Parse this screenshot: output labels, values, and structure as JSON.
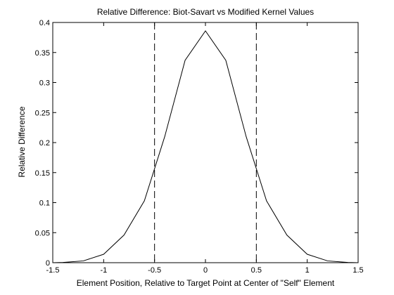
{
  "chart_data": {
    "type": "line",
    "title": "Relative Difference: Biot-Savart vs Modified Kernel Values",
    "xlabel": "Element Position, Relative to Target Point at Center of \"Self\" Element",
    "ylabel": "Relative Difference",
    "xlim": [
      -1.5,
      1.5
    ],
    "ylim": [
      0,
      0.4
    ],
    "xticks": [
      -1.5,
      -1,
      -0.5,
      0,
      0.5,
      1,
      1.5
    ],
    "xtick_labels": [
      "-1.5",
      "-1",
      "-0.5",
      "0",
      "0.5",
      "1",
      "1.5"
    ],
    "yticks": [
      0,
      0.05,
      0.1,
      0.15,
      0.2,
      0.25,
      0.3,
      0.35,
      0.4
    ],
    "ytick_labels": [
      "0",
      "0.05",
      "0.1",
      "0.15",
      "0.2",
      "0.25",
      "0.3",
      "0.35",
      "0.4"
    ],
    "grid": false,
    "series": [
      {
        "x": [
          -1.5,
          -1.4,
          -1.2,
          -1.0,
          -0.8,
          -0.6,
          -0.4,
          -0.2,
          0.0,
          0.2,
          0.4,
          0.6,
          0.8,
          1.0,
          1.2,
          1.4,
          1.5
        ],
        "y": [
          0.0,
          0.0005,
          0.003,
          0.014,
          0.046,
          0.103,
          0.21,
          0.337,
          0.386,
          0.337,
          0.21,
          0.103,
          0.046,
          0.014,
          0.003,
          0.0005,
          0.0
        ],
        "style": "solid",
        "color": "#000000"
      }
    ],
    "vertical_lines": [
      {
        "x": -0.5,
        "style": "dashed",
        "color": "#000000"
      },
      {
        "x": 0.5,
        "style": "dashed",
        "color": "#000000"
      }
    ]
  }
}
